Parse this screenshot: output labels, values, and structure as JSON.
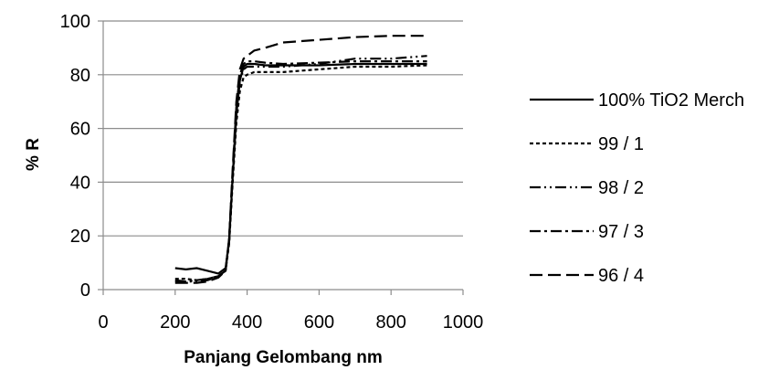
{
  "chart_data": {
    "type": "line",
    "title": "",
    "xlabel": "Panjang Gelombang nm",
    "ylabel": "% R",
    "xlim": [
      0,
      1000
    ],
    "ylim": [
      0,
      100
    ],
    "xticks": [
      0,
      200,
      400,
      600,
      800,
      1000
    ],
    "yticks": [
      0,
      20,
      40,
      60,
      80,
      100
    ],
    "grid": "horizontal",
    "legend_position": "right",
    "line_color": "#000000",
    "series": [
      {
        "name": "100% TiO2 Merch",
        "dash": "solid",
        "x": [
          200,
          230,
          260,
          290,
          320,
          340,
          350,
          360,
          370,
          380,
          390,
          400,
          420,
          450,
          500,
          600,
          700,
          800,
          900
        ],
        "y": [
          8,
          7.5,
          8,
          7,
          6,
          8,
          18,
          42,
          65,
          78,
          83,
          84,
          84,
          83.5,
          83.5,
          83.5,
          84,
          84,
          84
        ]
      },
      {
        "name": "99 / 1",
        "dash": "short-dash",
        "x": [
          200,
          230,
          260,
          290,
          320,
          340,
          350,
          360,
          370,
          380,
          390,
          400,
          420,
          450,
          500,
          600,
          700,
          800,
          900
        ],
        "y": [
          4,
          4,
          3.5,
          4,
          5,
          7,
          17,
          40,
          62,
          74,
          79,
          80,
          81,
          81,
          81,
          82,
          83,
          83,
          83.5
        ]
      },
      {
        "name": "98 / 2",
        "dash": "dash-dot-dot",
        "x": [
          200,
          230,
          260,
          290,
          320,
          340,
          350,
          360,
          370,
          380,
          390,
          400,
          420,
          450,
          500,
          600,
          700,
          800,
          900
        ],
        "y": [
          3,
          3,
          3,
          3.5,
          5,
          7,
          18,
          42,
          66,
          78,
          82,
          83,
          83,
          83,
          83,
          84,
          86,
          86,
          87
        ]
      },
      {
        "name": "97 / 3",
        "dash": "dash-dot",
        "x": [
          200,
          230,
          260,
          290,
          320,
          340,
          350,
          360,
          370,
          380,
          390,
          400,
          420,
          450,
          500,
          600,
          700,
          800,
          900
        ],
        "y": [
          3.5,
          3,
          3.5,
          4,
          5,
          7,
          19,
          44,
          68,
          80,
          84,
          85,
          85,
          84.5,
          84,
          84.5,
          85,
          85,
          85
        ]
      },
      {
        "name": "96 / 4",
        "dash": "long-dash",
        "x": [
          200,
          230,
          260,
          290,
          320,
          340,
          350,
          360,
          370,
          380,
          390,
          400,
          420,
          450,
          500,
          600,
          700,
          800,
          900
        ],
        "y": [
          2.5,
          2.5,
          2.5,
          3,
          4.5,
          7,
          19,
          45,
          70,
          82,
          86,
          87,
          89,
          90,
          92,
          93,
          94,
          94.5,
          94.5
        ]
      }
    ]
  }
}
